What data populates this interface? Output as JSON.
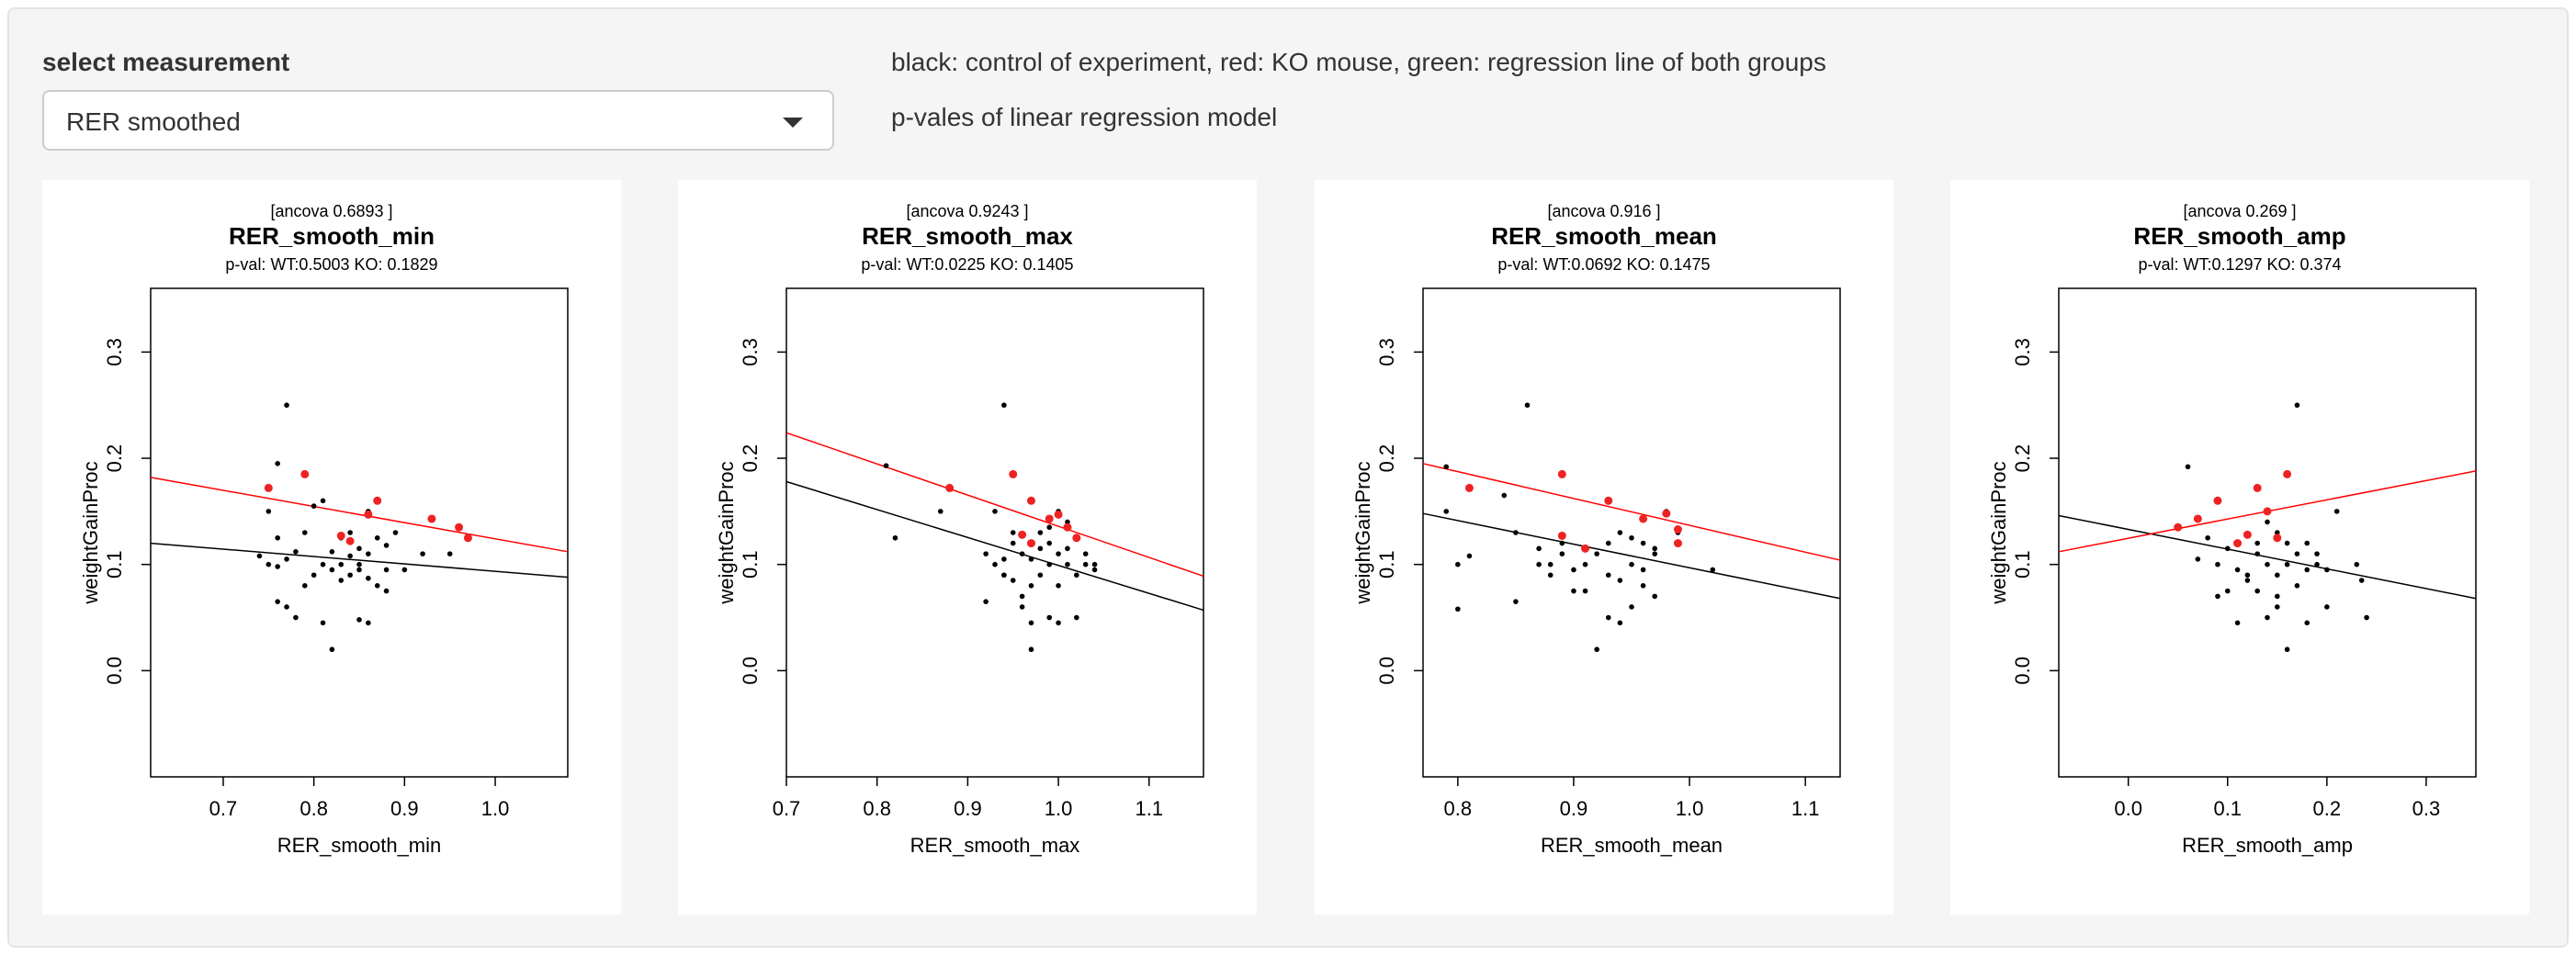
{
  "controls": {
    "label": "select measurement",
    "selected": "RER smoothed"
  },
  "info": {
    "legend_text": "black: control of experiment, red: KO mouse, green: regression line of both groups",
    "pvalue_text": "p-vales of linear regression model"
  },
  "colors": {
    "control": "#000000",
    "ko": "#ee2222",
    "ko_line": "#ff0000"
  },
  "chart_data": [
    {
      "type": "scatter",
      "ancova": "[ancova 0.6893 ]",
      "title": "RER_smooth_min",
      "subtitle": "p-val: WT:0.5003 KO: 0.1829",
      "xlabel": "RER_smooth_min",
      "ylabel": "weightGainProc",
      "xlim": [
        0.62,
        1.08
      ],
      "ylim": [
        -0.1,
        0.36
      ],
      "xticks": [
        "0.7",
        "0.8",
        "0.9",
        "1.0"
      ],
      "yticks": [
        "0.0",
        "0.1",
        "0.2",
        "0.3"
      ],
      "wt_points": [
        [
          0.77,
          0.25
        ],
        [
          0.76,
          0.195
        ],
        [
          0.75,
          0.15
        ],
        [
          0.76,
          0.125
        ],
        [
          0.74,
          0.108
        ],
        [
          0.75,
          0.1
        ],
        [
          0.76,
          0.098
        ],
        [
          0.77,
          0.105
        ],
        [
          0.78,
          0.112
        ],
        [
          0.79,
          0.08
        ],
        [
          0.8,
          0.09
        ],
        [
          0.81,
          0.1
        ],
        [
          0.82,
          0.112
        ],
        [
          0.82,
          0.095
        ],
        [
          0.83,
          0.085
        ],
        [
          0.84,
          0.09
        ],
        [
          0.85,
          0.1
        ],
        [
          0.85,
          0.115
        ],
        [
          0.86,
          0.11
        ],
        [
          0.86,
          0.087
        ],
        [
          0.87,
          0.08
        ],
        [
          0.88,
          0.095
        ],
        [
          0.88,
          0.075
        ],
        [
          0.9,
          0.095
        ],
        [
          0.92,
          0.11
        ],
        [
          0.95,
          0.11
        ],
        [
          0.76,
          0.065
        ],
        [
          0.77,
          0.06
        ],
        [
          0.78,
          0.05
        ],
        [
          0.81,
          0.045
        ],
        [
          0.85,
          0.048
        ],
        [
          0.86,
          0.045
        ],
        [
          0.82,
          0.02
        ],
        [
          0.83,
          0.125
        ],
        [
          0.84,
          0.13
        ],
        [
          0.85,
          0.095
        ],
        [
          0.87,
          0.125
        ],
        [
          0.88,
          0.118
        ],
        [
          0.89,
          0.13
        ],
        [
          0.8,
          0.155
        ],
        [
          0.81,
          0.16
        ],
        [
          0.79,
          0.13
        ],
        [
          0.83,
          0.1
        ],
        [
          0.84,
          0.108
        ],
        [
          0.86,
          0.15
        ]
      ],
      "ko_points": [
        [
          0.75,
          0.172
        ],
        [
          0.79,
          0.185
        ],
        [
          0.86,
          0.147
        ],
        [
          0.87,
          0.16
        ],
        [
          0.93,
          0.143
        ],
        [
          0.96,
          0.135
        ],
        [
          0.97,
          0.125
        ],
        [
          0.83,
          0.127
        ],
        [
          0.84,
          0.122
        ]
      ],
      "wt_line": [
        [
          0.62,
          0.12
        ],
        [
          1.08,
          0.088
        ]
      ],
      "ko_line": [
        [
          0.62,
          0.182
        ],
        [
          1.08,
          0.112
        ]
      ]
    },
    {
      "type": "scatter",
      "ancova": "[ancova 0.9243 ]",
      "title": "RER_smooth_max",
      "subtitle": "p-val: WT:0.0225 KO: 0.1405",
      "xlabel": "RER_smooth_max",
      "ylabel": "weightGainProc",
      "xlim": [
        0.7,
        1.16
      ],
      "ylim": [
        -0.1,
        0.36
      ],
      "xticks": [
        "0.7",
        "0.8",
        "0.9",
        "1.0",
        "1.1"
      ],
      "yticks": [
        "0.0",
        "0.1",
        "0.2",
        "0.3"
      ],
      "wt_points": [
        [
          0.81,
          0.193
        ],
        [
          0.82,
          0.125
        ],
        [
          0.87,
          0.15
        ],
        [
          0.94,
          0.25
        ],
        [
          0.93,
          0.15
        ],
        [
          0.92,
          0.11
        ],
        [
          0.93,
          0.1
        ],
        [
          0.94,
          0.09
        ],
        [
          0.95,
          0.12
        ],
        [
          0.96,
          0.11
        ],
        [
          0.97,
          0.105
        ],
        [
          0.98,
          0.13
        ],
        [
          0.99,
          0.12
        ],
        [
          1.0,
          0.11
        ],
        [
          1.01,
          0.115
        ],
        [
          1.02,
          0.125
        ],
        [
          1.03,
          0.1
        ],
        [
          1.04,
          0.095
        ],
        [
          1.0,
          0.15
        ],
        [
          1.01,
          0.14
        ],
        [
          0.99,
          0.1
        ],
        [
          0.98,
          0.09
        ],
        [
          0.97,
          0.08
        ],
        [
          0.96,
          0.07
        ],
        [
          0.95,
          0.085
        ],
        [
          0.94,
          0.09
        ],
        [
          0.92,
          0.065
        ],
        [
          0.97,
          0.045
        ],
        [
          0.99,
          0.05
        ],
        [
          1.0,
          0.045
        ],
        [
          1.02,
          0.05
        ],
        [
          0.97,
          0.02
        ],
        [
          0.96,
          0.06
        ],
        [
          1.0,
          0.08
        ],
        [
          1.02,
          0.09
        ],
        [
          1.03,
          0.11
        ],
        [
          1.04,
          0.1
        ],
        [
          1.01,
          0.1
        ],
        [
          0.98,
          0.115
        ],
        [
          0.99,
          0.135
        ],
        [
          0.95,
          0.13
        ],
        [
          0.94,
          0.105
        ]
      ],
      "ko_points": [
        [
          0.88,
          0.172
        ],
        [
          0.95,
          0.185
        ],
        [
          0.97,
          0.16
        ],
        [
          1.0,
          0.147
        ],
        [
          1.01,
          0.135
        ],
        [
          0.96,
          0.128
        ],
        [
          0.97,
          0.12
        ],
        [
          1.02,
          0.125
        ],
        [
          0.99,
          0.143
        ]
      ],
      "wt_line": [
        [
          0.7,
          0.178
        ],
        [
          1.16,
          0.057
        ]
      ],
      "ko_line": [
        [
          0.7,
          0.224
        ],
        [
          1.16,
          0.089
        ]
      ]
    },
    {
      "type": "scatter",
      "ancova": "[ancova 0.916 ]",
      "title": "RER_smooth_mean",
      "subtitle": "p-val: WT:0.0692 KO: 0.1475",
      "xlabel": "RER_smooth_mean",
      "ylabel": "weightGainProc",
      "xlim": [
        0.77,
        1.13
      ],
      "ylim": [
        -0.1,
        0.36
      ],
      "xticks": [
        "0.7",
        "0.8",
        "0.9",
        "1.0",
        "1.1"
      ],
      "yticks": [
        "0.0",
        "0.1",
        "0.2",
        "0.3"
      ],
      "wt_points": [
        [
          0.79,
          0.192
        ],
        [
          0.79,
          0.15
        ],
        [
          0.81,
          0.108
        ],
        [
          0.8,
          0.1
        ],
        [
          0.8,
          0.058
        ],
        [
          0.84,
          0.165
        ],
        [
          0.86,
          0.25
        ],
        [
          0.85,
          0.13
        ],
        [
          0.87,
          0.1
        ],
        [
          0.88,
          0.09
        ],
        [
          0.89,
          0.11
        ],
        [
          0.9,
          0.095
        ],
        [
          0.91,
          0.1
        ],
        [
          0.92,
          0.11
        ],
        [
          0.93,
          0.09
        ],
        [
          0.94,
          0.085
        ],
        [
          0.95,
          0.1
        ],
        [
          0.96,
          0.095
        ],
        [
          0.97,
          0.11
        ],
        [
          0.98,
          0.15
        ],
        [
          0.99,
          0.13
        ],
        [
          0.93,
          0.05
        ],
        [
          0.94,
          0.045
        ],
        [
          0.92,
          0.02
        ],
        [
          0.91,
          0.075
        ],
        [
          0.9,
          0.075
        ],
        [
          0.96,
          0.08
        ],
        [
          0.97,
          0.07
        ],
        [
          0.95,
          0.06
        ],
        [
          1.02,
          0.095
        ],
        [
          0.88,
          0.1
        ],
        [
          0.93,
          0.12
        ],
        [
          0.94,
          0.13
        ],
        [
          0.95,
          0.125
        ],
        [
          0.96,
          0.12
        ],
        [
          0.97,
          0.115
        ],
        [
          0.89,
          0.12
        ],
        [
          0.87,
          0.115
        ],
        [
          0.85,
          0.065
        ]
      ],
      "ko_points": [
        [
          0.81,
          0.172
        ],
        [
          0.89,
          0.185
        ],
        [
          0.93,
          0.16
        ],
        [
          0.96,
          0.143
        ],
        [
          0.98,
          0.148
        ],
        [
          0.99,
          0.133
        ],
        [
          0.89,
          0.127
        ],
        [
          0.91,
          0.115
        ],
        [
          0.99,
          0.12
        ]
      ],
      "wt_line": [
        [
          0.77,
          0.148
        ],
        [
          1.13,
          0.068
        ]
      ],
      "ko_line": [
        [
          0.77,
          0.195
        ],
        [
          1.13,
          0.104
        ]
      ]
    },
    {
      "type": "scatter",
      "ancova": "[ancova 0.269 ]",
      "title": "RER_smooth_amp",
      "subtitle": "p-val: WT:0.1297 KO: 0.374",
      "xlabel": "RER_smooth_amp",
      "ylabel": "weightGainProc",
      "xlim": [
        -0.07,
        0.35
      ],
      "ylim": [
        -0.1,
        0.36
      ],
      "xticks": [
        "0.0",
        "0.1",
        "0.2",
        "0.3"
      ],
      "yticks": [
        "0.0",
        "0.1",
        "0.2",
        "0.3"
      ],
      "wt_points": [
        [
          0.06,
          0.192
        ],
        [
          0.07,
          0.105
        ],
        [
          0.08,
          0.125
        ],
        [
          0.09,
          0.1
        ],
        [
          0.1,
          0.115
        ],
        [
          0.11,
          0.095
        ],
        [
          0.12,
          0.085
        ],
        [
          0.13,
          0.075
        ],
        [
          0.12,
          0.09
        ],
        [
          0.13,
          0.11
        ],
        [
          0.14,
          0.1
        ],
        [
          0.15,
          0.09
        ],
        [
          0.16,
          0.1
        ],
        [
          0.17,
          0.11
        ],
        [
          0.18,
          0.095
        ],
        [
          0.19,
          0.1
        ],
        [
          0.2,
          0.095
        ],
        [
          0.14,
          0.14
        ],
        [
          0.15,
          0.13
        ],
        [
          0.16,
          0.12
        ],
        [
          0.17,
          0.25
        ],
        [
          0.18,
          0.12
        ],
        [
          0.19,
          0.11
        ],
        [
          0.21,
          0.15
        ],
        [
          0.23,
          0.1
        ],
        [
          0.235,
          0.085
        ],
        [
          0.24,
          0.05
        ],
        [
          0.1,
          0.075
        ],
        [
          0.11,
          0.045
        ],
        [
          0.14,
          0.05
        ],
        [
          0.15,
          0.06
        ],
        [
          0.16,
          0.02
        ],
        [
          0.18,
          0.045
        ],
        [
          0.2,
          0.06
        ],
        [
          0.17,
          0.08
        ],
        [
          0.09,
          0.07
        ],
        [
          0.13,
          0.12
        ],
        [
          0.15,
          0.07
        ]
      ],
      "ko_points": [
        [
          0.05,
          0.135
        ],
        [
          0.07,
          0.143
        ],
        [
          0.09,
          0.16
        ],
        [
          0.13,
          0.172
        ],
        [
          0.16,
          0.185
        ],
        [
          0.14,
          0.15
        ],
        [
          0.12,
          0.128
        ],
        [
          0.11,
          0.12
        ],
        [
          0.15,
          0.125
        ]
      ],
      "wt_line": [
        [
          -0.07,
          0.146
        ],
        [
          0.35,
          0.068
        ]
      ],
      "ko_line": [
        [
          -0.07,
          0.112
        ],
        [
          0.35,
          0.188
        ]
      ]
    }
  ]
}
